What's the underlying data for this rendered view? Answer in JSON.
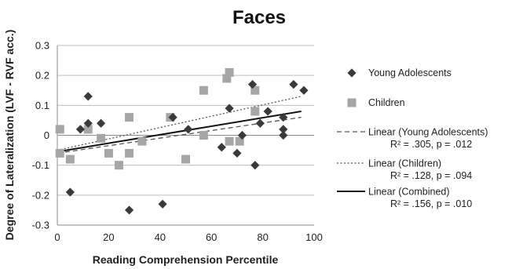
{
  "chart_data": {
    "type": "scatter",
    "title": "Faces",
    "xlabel": "Reading Comprehension Percentile",
    "ylabel": "Degree of Lateralization (LVF - RVF acc.)",
    "xlim": [
      0,
      100
    ],
    "ylim": [
      -0.3,
      0.3
    ],
    "x_ticks": [
      0,
      20,
      40,
      60,
      80,
      100
    ],
    "y_ticks": [
      -0.3,
      -0.2,
      -0.1,
      0,
      0.1,
      0.2,
      0.3
    ],
    "y_tick_labels": [
      "-0.3",
      "-0.2",
      "-0.1",
      "0",
      "0.1",
      "0.2",
      "0.3"
    ],
    "grid": "horizontal",
    "legend_position": "right",
    "series": [
      {
        "name": "Young Adolescents",
        "marker": "diamond",
        "color": "#3a3a3a",
        "points": [
          [
            5,
            -0.19
          ],
          [
            9,
            0.02
          ],
          [
            12,
            0.13
          ],
          [
            12,
            0.04
          ],
          [
            17,
            0.04
          ],
          [
            28,
            -0.25
          ],
          [
            41,
            -0.23
          ],
          [
            45,
            0.06
          ],
          [
            51,
            0.02
          ],
          [
            64,
            -0.04
          ],
          [
            67,
            0.09
          ],
          [
            70,
            -0.06
          ],
          [
            72,
            0.0
          ],
          [
            76,
            0.17
          ],
          [
            77,
            -0.1
          ],
          [
            79,
            0.04
          ],
          [
            82,
            0.08
          ],
          [
            88,
            0.06
          ],
          [
            88,
            0.02
          ],
          [
            88,
            0.0
          ],
          [
            92,
            0.17
          ],
          [
            96,
            0.15
          ]
        ]
      },
      {
        "name": "Children",
        "marker": "square",
        "color": "#a6a6a6",
        "points": [
          [
            1,
            0.02
          ],
          [
            1,
            -0.06
          ],
          [
            5,
            -0.08
          ],
          [
            12,
            0.02
          ],
          [
            17,
            -0.01
          ],
          [
            20,
            -0.06
          ],
          [
            24,
            -0.1
          ],
          [
            28,
            0.06
          ],
          [
            28,
            -0.06
          ],
          [
            33,
            -0.02
          ],
          [
            44,
            0.06
          ],
          [
            50,
            -0.08
          ],
          [
            57,
            0.15
          ],
          [
            57,
            0.0
          ],
          [
            66,
            0.19
          ],
          [
            67,
            0.21
          ],
          [
            67,
            -0.02
          ],
          [
            71,
            -0.02
          ],
          [
            77,
            0.15
          ],
          [
            77,
            0.08
          ]
        ]
      }
    ],
    "trendlines": [
      {
        "name": "Linear (Young Adolescents)",
        "style": "dashed",
        "color": "#555555",
        "from": [
          0,
          -0.06
        ],
        "to": [
          95,
          0.06
        ],
        "stats": "R² = .305, p = .012"
      },
      {
        "name": "Linear (Children)",
        "style": "dotted",
        "color": "#555555",
        "from": [
          0,
          -0.05
        ],
        "to": [
          95,
          0.13
        ],
        "stats": "R² = .128, p = .094"
      },
      {
        "name": "Linear (Combined)",
        "style": "solid",
        "color": "#111111",
        "from": [
          0,
          -0.055
        ],
        "to": [
          95,
          0.08
        ],
        "stats": "R² = .156, p = .010"
      }
    ]
  }
}
